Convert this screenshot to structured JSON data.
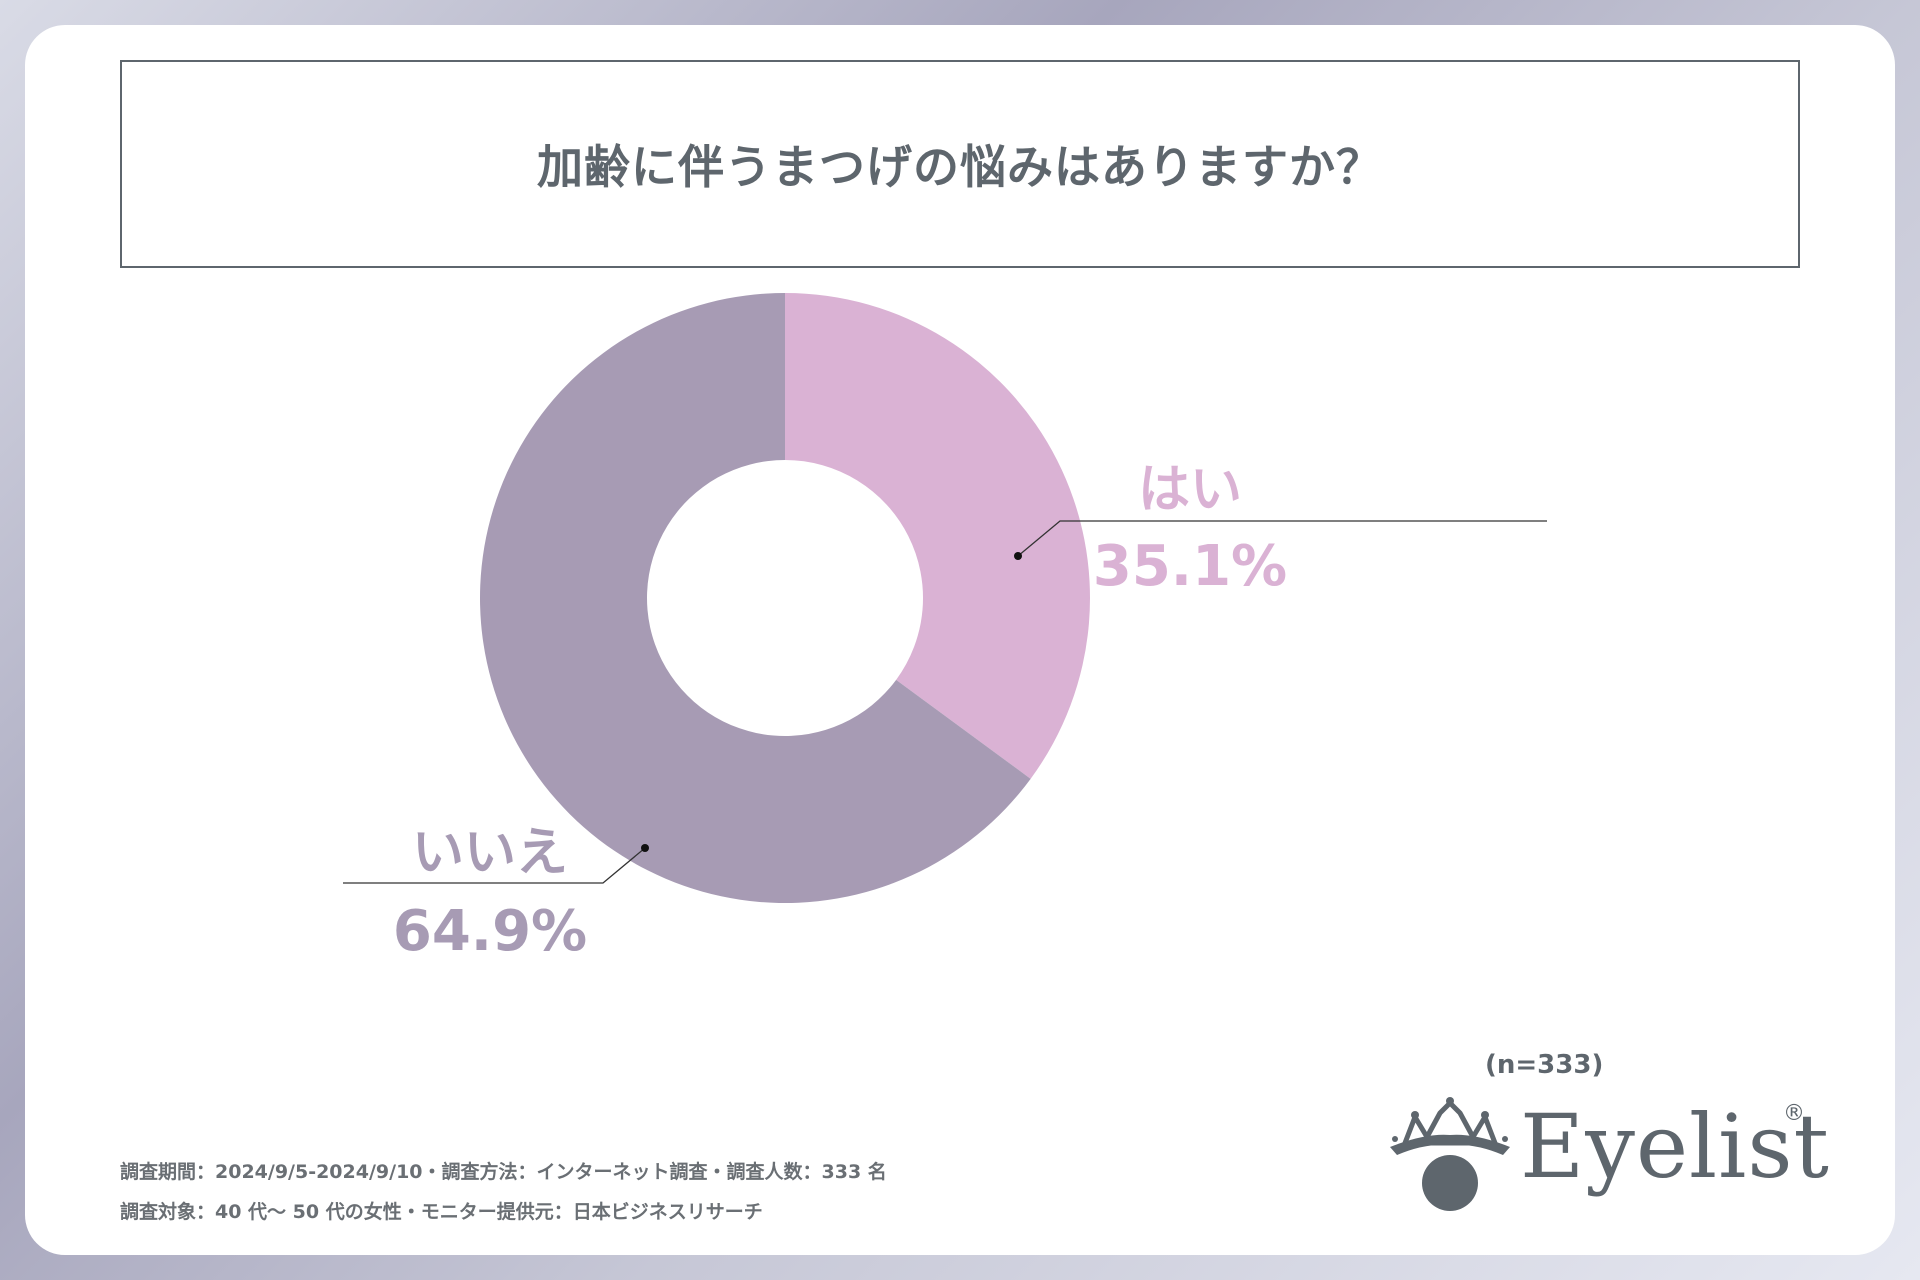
{
  "title": "加齢に伴うまつげの悩みはありますか？",
  "sample_size": "(n=333)",
  "footnotes": [
    "調査期間：2024/9/5-2024/9/10・調査方法：インターネット調査・調査人数：333 名",
    "調査対象：40 代～ 50 代の女性・モニター提供元：日本ビジネスリサーチ"
  ],
  "brand": {
    "name": "Eyelist",
    "reg_mark": "®",
    "color": "#5e666d"
  },
  "chart_data": {
    "type": "pie",
    "variant": "donut",
    "title": "加齢に伴うまつげの悩みはありますか？",
    "categories": [
      "はい",
      "いいえ"
    ],
    "values": [
      35.1,
      64.9
    ],
    "value_labels": [
      "35.1%",
      "64.9%"
    ],
    "colors": [
      "#dab2d4",
      "#a79bb4"
    ],
    "start": "12 o'clock, clockwise",
    "legend": "none"
  }
}
